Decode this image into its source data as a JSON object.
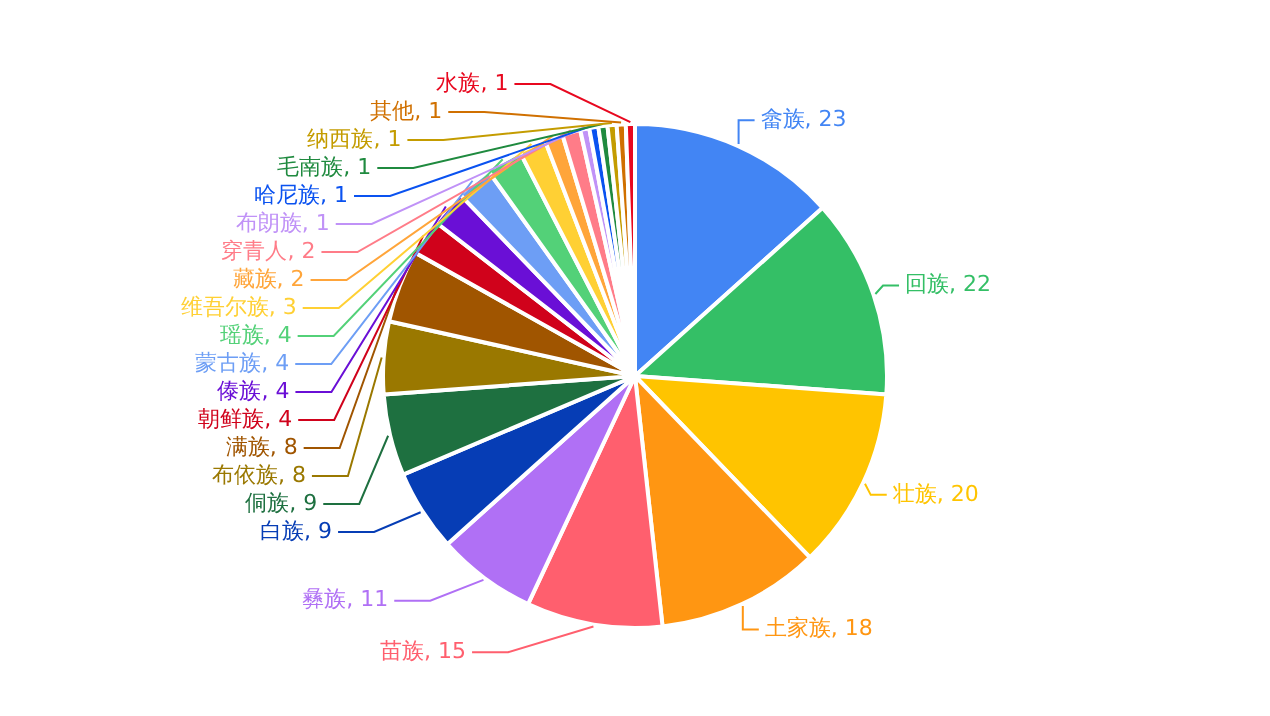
{
  "chart_data": {
    "type": "pie",
    "categories": [
      "畲族",
      "回族",
      "壮族",
      "土家族",
      "苗族",
      "彝族",
      "白族",
      "侗族",
      "布依族",
      "满族",
      "朝鲜族",
      "傣族",
      "蒙古族",
      "瑶族",
      "维吾尔族",
      "藏族",
      "穿青人",
      "布朗族",
      "哈尼族",
      "毛南族",
      "纳西族",
      "其他",
      "水族"
    ],
    "values": [
      23,
      22,
      20,
      18,
      15,
      11,
      9,
      9,
      8,
      8,
      4,
      4,
      4,
      4,
      3,
      2,
      2,
      1,
      1,
      1,
      1,
      1,
      1
    ],
    "colors": [
      "#4285f4",
      "#34bf66",
      "#ffc400",
      "#ff9612",
      "#ff5f6e",
      "#b070f5",
      "#063db5",
      "#1e7040",
      "#9a7800",
      "#a05500",
      "#d0021b",
      "#6a0fd6",
      "#6d9ef5",
      "#53d178",
      "#ffd034",
      "#ffa53a",
      "#ff7c88",
      "#c092f7",
      "#0a52f0",
      "#1f8a3f",
      "#c49c00",
      "#d07000",
      "#e8081f"
    ],
    "value_labels": [
      ", 23",
      ", 22",
      ", 20",
      ", 18",
      ", 15",
      ", 11",
      ", 9",
      ", 9",
      ", 8",
      ", 8",
      ", 4",
      ", 4",
      ", 4",
      ", 4",
      ", 3",
      ", 2",
      ", 2",
      ", 1",
      ", 1",
      ", 1",
      ", 1",
      ", 1",
      ", 1"
    ],
    "legend": false
  }
}
